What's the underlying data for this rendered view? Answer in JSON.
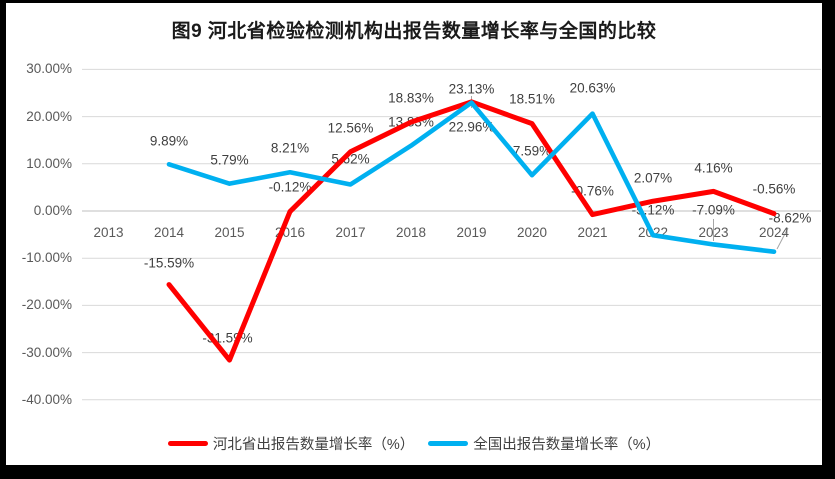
{
  "page": {
    "title": "图9 河北省检验检测机构出报告数量增长率与全国的比较"
  },
  "chart_data": {
    "type": "line",
    "title": "图9 河北省检验检测机构出报告数量增长率与全国的比较",
    "categories": [
      "2013",
      "2014",
      "2015",
      "2016",
      "2017",
      "2018",
      "2019",
      "2020",
      "2021",
      "2022",
      "2023",
      "2024"
    ],
    "series": [
      {
        "id": "hebei",
        "name": "河北省出报告数量增长率（%）",
        "color": "#FF0000",
        "values": [
          null,
          -15.59,
          -31.59,
          -0.12,
          12.56,
          18.83,
          23.13,
          18.51,
          -0.76,
          2.07,
          4.16,
          -0.56
        ],
        "labels": [
          "",
          "-15.59%",
          "-31.59%",
          "-0.12%",
          "12.56%",
          "18.83%",
          "23.13%",
          "18.51%",
          "-0.76%",
          "2.07%",
          "4.16%",
          "-0.56%"
        ]
      },
      {
        "id": "national",
        "name": "全国出报告数量增长率（%）",
        "color": "#00B0F0",
        "values": [
          null,
          9.89,
          5.79,
          8.21,
          5.62,
          13.83,
          22.96,
          7.59,
          20.63,
          -5.12,
          -7.09,
          -8.62
        ],
        "labels": [
          "",
          "9.89%",
          "5.79%",
          "8.21%",
          "5.62%",
          "13.83%",
          "22.96%",
          "7.59%",
          "20.63%",
          "-5.12%",
          "-7.09%",
          "-8.62%"
        ]
      }
    ],
    "xlabel": "",
    "ylabel": "",
    "ylim": [
      -40,
      30
    ],
    "ytick_labels": [
      "30.00%",
      "20.00%",
      "10.00%",
      "0.00%",
      "-10.00%",
      "-20.00%",
      "-30.00%",
      "-40.00%"
    ],
    "grid": true,
    "legend_position": "bottom",
    "colors": {
      "gridline": "#D9D9D9",
      "axis": "#BFBFBF",
      "leader": "#A6A6A6",
      "tick_text": "#595959",
      "data_label_text": "#404040"
    }
  }
}
